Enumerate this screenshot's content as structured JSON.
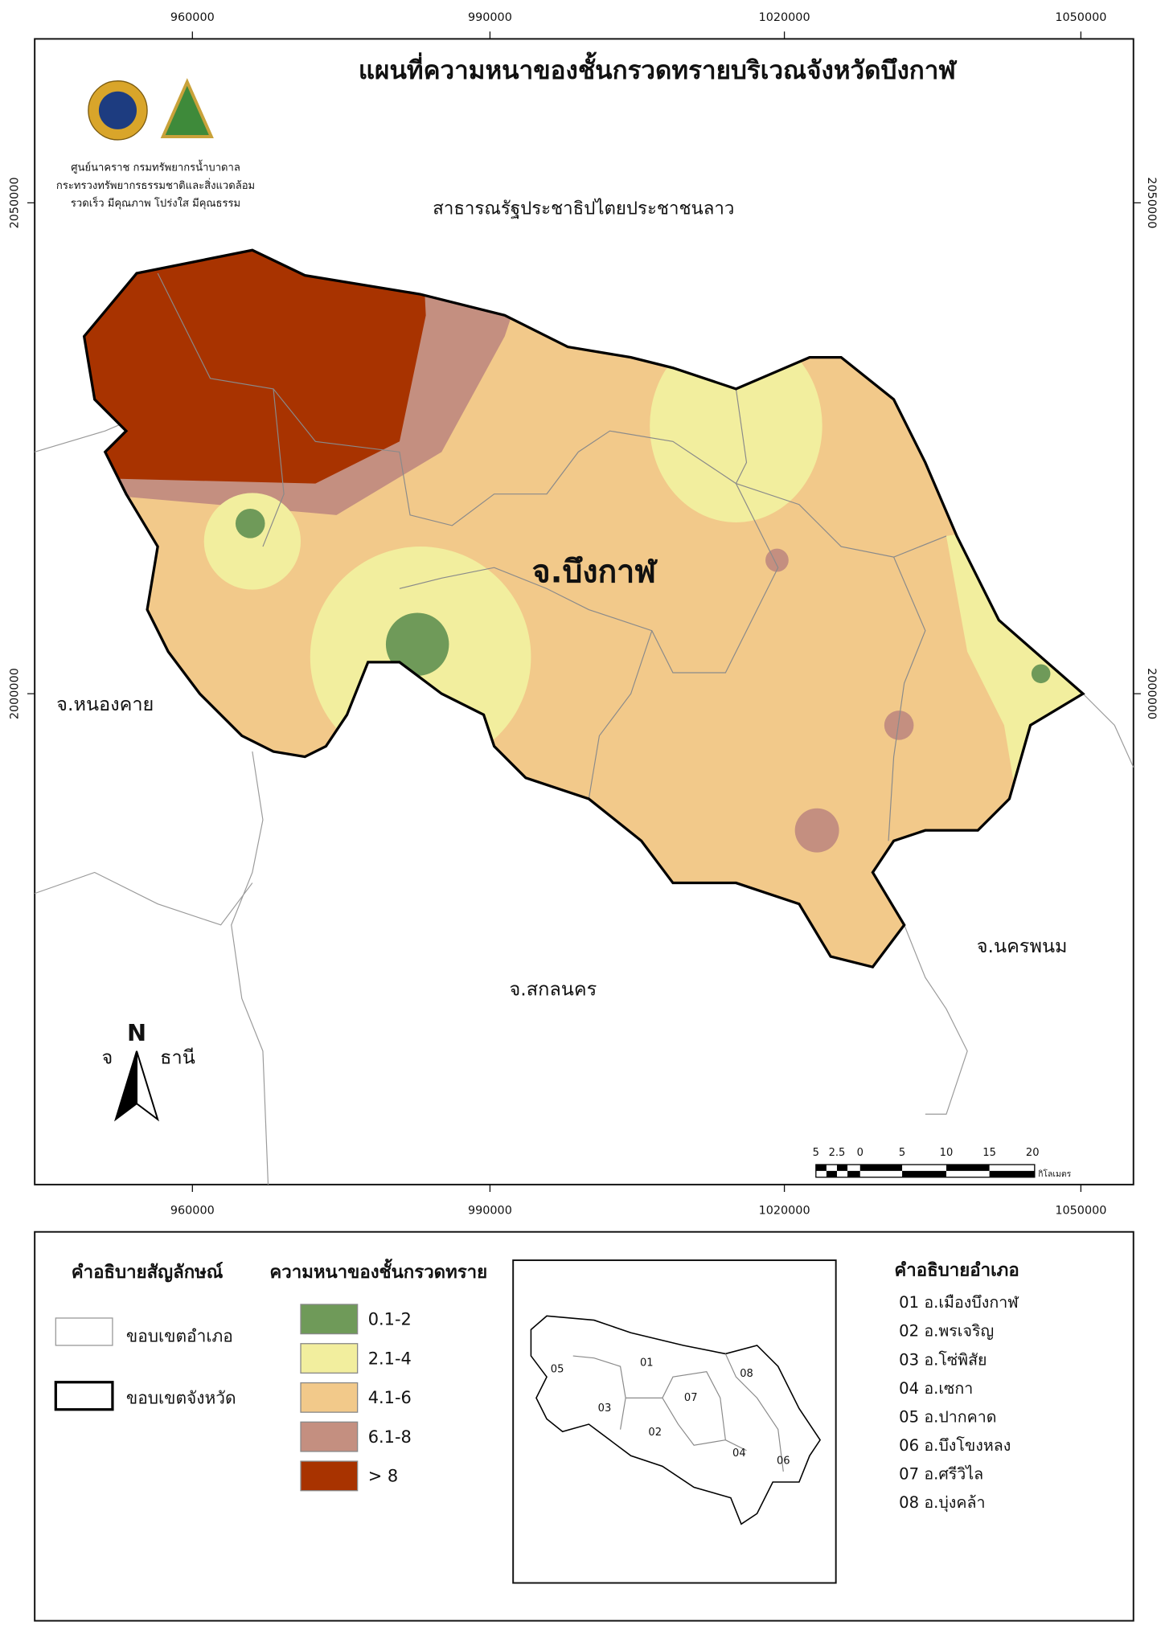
{
  "title": "แผนที่ความหนาของชั้นกรวดทรายบริเวณจังหวัดบึงกาฬ",
  "agency": [
    "ศูนย์นาคราช กรมทรัพยากรน้ำบาดาล",
    "กระทรวงทรัพยากรธรรมชาติและสิ่งแวดล้อม",
    "รวดเร็ว มีคุณภาพ โปร่งใส มีคุณธรรม"
  ],
  "map": {
    "country_label": "สาธารณรัฐประชาธิปไตยประชาชนลาว",
    "province_label": "จ.บึงกาฬ",
    "neighbors": [
      "จ.หนองคาย",
      "จ.สกลนคร",
      "จ.นครพนม",
      "จ",
      "ธานี"
    ],
    "north": "N",
    "x_ticks": [
      960000,
      990000,
      1020000,
      1050000
    ],
    "y_ticks": [
      2050000,
      2000000
    ],
    "scale_bar": {
      "labels": [
        5,
        2.5,
        0,
        5,
        10,
        15,
        20
      ],
      "unit": "กิโลเมตร"
    }
  },
  "legend": {
    "symbol_title": "คำอธิบายสัญลักษณ์",
    "boundaries": [
      "ขอบเขตอำเภอ",
      "ขอบเขตจังหวัด"
    ],
    "thickness_title": "ความหนาของชั้นกรวดทราย",
    "classes": [
      {
        "label": "0.1-2",
        "color": "#6f9a59"
      },
      {
        "label": "2.1-4",
        "color": "#f2ee9e"
      },
      {
        "label": "4.1-6",
        "color": "#f2c98a"
      },
      {
        "label": "6.1-8",
        "color": "#c48f80"
      },
      {
        "label": "> 8",
        "color": "#a83300"
      }
    ]
  },
  "inset": {
    "labels": [
      "05",
      "01",
      "03",
      "07",
      "08",
      "02",
      "04",
      "06"
    ]
  },
  "districts": {
    "title": "คำอธิบายอำเภอ",
    "items": [
      "01 อ.เมืองบึงกาฬ",
      "02 อ.พรเจริญ",
      "03 อ.โซ่พิสัย",
      "04 อ.เซกา",
      "05 อ.ปากคาด",
      "06 อ.บึงโขงหลง",
      "07 อ.ศรีวิไล",
      "08 อ.บุ่งคล้า"
    ]
  }
}
